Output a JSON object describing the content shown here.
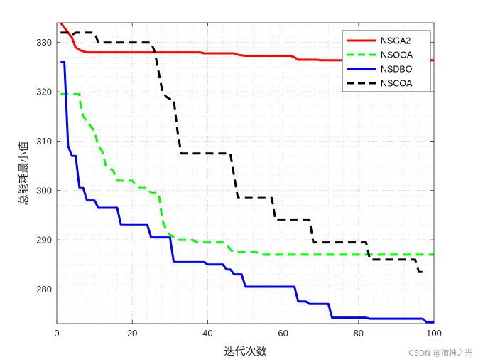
{
  "chart_data": {
    "type": "line",
    "title": "",
    "xlabel": "迭代次数",
    "ylabel": "总能耗最小值",
    "xlim": [
      0,
      100
    ],
    "ylim": [
      273,
      334
    ],
    "xticks": [
      0,
      20,
      40,
      60,
      80,
      100
    ],
    "yticks": [
      280,
      290,
      300,
      310,
      320,
      330
    ],
    "grid": "major and minor, dotted",
    "legend_position": "top-right",
    "series": [
      {
        "name": "NSGA2",
        "color": "#ff0000",
        "style": "solid",
        "points": [
          [
            1,
            334
          ],
          [
            2,
            333
          ],
          [
            3,
            332
          ],
          [
            4,
            331
          ],
          [
            5,
            329
          ],
          [
            6,
            328.5
          ],
          [
            7,
            328.2
          ],
          [
            8,
            328
          ],
          [
            10,
            328
          ],
          [
            26,
            328
          ],
          [
            38,
            328
          ],
          [
            39,
            327.8
          ],
          [
            47,
            327.8
          ],
          [
            48,
            327.5
          ],
          [
            50,
            327.3
          ],
          [
            62,
            327.3
          ],
          [
            63,
            327
          ],
          [
            64,
            326.5
          ],
          [
            69,
            326.5
          ],
          [
            70,
            326.4
          ],
          [
            100,
            326.4
          ]
        ]
      },
      {
        "name": "NSOOA",
        "color": "#00ff00",
        "style": "dashed",
        "points": [
          [
            1,
            319.5
          ],
          [
            6,
            319.5
          ],
          [
            6,
            318.5
          ],
          [
            7,
            315
          ],
          [
            8,
            314
          ],
          [
            9,
            313
          ],
          [
            10,
            312
          ],
          [
            11,
            309
          ],
          [
            12,
            308
          ],
          [
            13,
            305
          ],
          [
            14,
            304.5
          ],
          [
            15,
            304
          ],
          [
            16,
            302
          ],
          [
            20,
            302
          ],
          [
            21,
            301
          ],
          [
            22,
            300.5
          ],
          [
            24,
            300.5
          ],
          [
            25,
            299.5
          ],
          [
            27,
            299.5
          ],
          [
            28,
            294
          ],
          [
            29,
            292
          ],
          [
            30,
            291
          ],
          [
            31,
            290.5
          ],
          [
            32,
            290
          ],
          [
            36,
            290
          ],
          [
            37,
            289.5
          ],
          [
            44,
            289.5
          ],
          [
            45,
            289
          ],
          [
            46,
            288
          ],
          [
            47,
            287.5
          ],
          [
            53,
            287.5
          ],
          [
            54,
            287
          ],
          [
            100,
            287
          ]
        ]
      },
      {
        "name": "NSDBO",
        "color": "#0000ff",
        "style": "solid",
        "points": [
          [
            1,
            326
          ],
          [
            2,
            326
          ],
          [
            3,
            309
          ],
          [
            4,
            307
          ],
          [
            5,
            307
          ],
          [
            6,
            300.5
          ],
          [
            7,
            300.5
          ],
          [
            8,
            298
          ],
          [
            10,
            298
          ],
          [
            11,
            296.5
          ],
          [
            16,
            296.5
          ],
          [
            17,
            293
          ],
          [
            24,
            293
          ],
          [
            25,
            290.5
          ],
          [
            30,
            290.5
          ],
          [
            31,
            285.5
          ],
          [
            39,
            285.5
          ],
          [
            40,
            285
          ],
          [
            44,
            285
          ],
          [
            45,
            284
          ],
          [
            46,
            284
          ],
          [
            47,
            283
          ],
          [
            49,
            283
          ],
          [
            50,
            280.5
          ],
          [
            63,
            280.5
          ],
          [
            64,
            277.5
          ],
          [
            66,
            277.5
          ],
          [
            67,
            277
          ],
          [
            72,
            277
          ],
          [
            73,
            274.2
          ],
          [
            82,
            274.2
          ],
          [
            83,
            274
          ],
          [
            97,
            274
          ],
          [
            98,
            273.3
          ],
          [
            100,
            273.3
          ]
        ]
      },
      {
        "name": "NSCOA",
        "color": "#000000",
        "style": "dashed",
        "points": [
          [
            1,
            332
          ],
          [
            3,
            332
          ],
          [
            4,
            331.5
          ],
          [
            5,
            332
          ],
          [
            10,
            332
          ],
          [
            11,
            330
          ],
          [
            25,
            330
          ],
          [
            26,
            328
          ],
          [
            27,
            324
          ],
          [
            28,
            320
          ],
          [
            29,
            319
          ],
          [
            30,
            318.5
          ],
          [
            31,
            318.5
          ],
          [
            32,
            312
          ],
          [
            33,
            307.5
          ],
          [
            46,
            307.5
          ],
          [
            47,
            303
          ],
          [
            48,
            298.5
          ],
          [
            57,
            298.5
          ],
          [
            58,
            294
          ],
          [
            67,
            294
          ],
          [
            68,
            289.5
          ],
          [
            82,
            289.5
          ],
          [
            83,
            286
          ],
          [
            95,
            286
          ],
          [
            96,
            283.5
          ],
          [
            98,
            283.5
          ]
        ]
      }
    ]
  },
  "watermark": "CSDN @海神之光"
}
